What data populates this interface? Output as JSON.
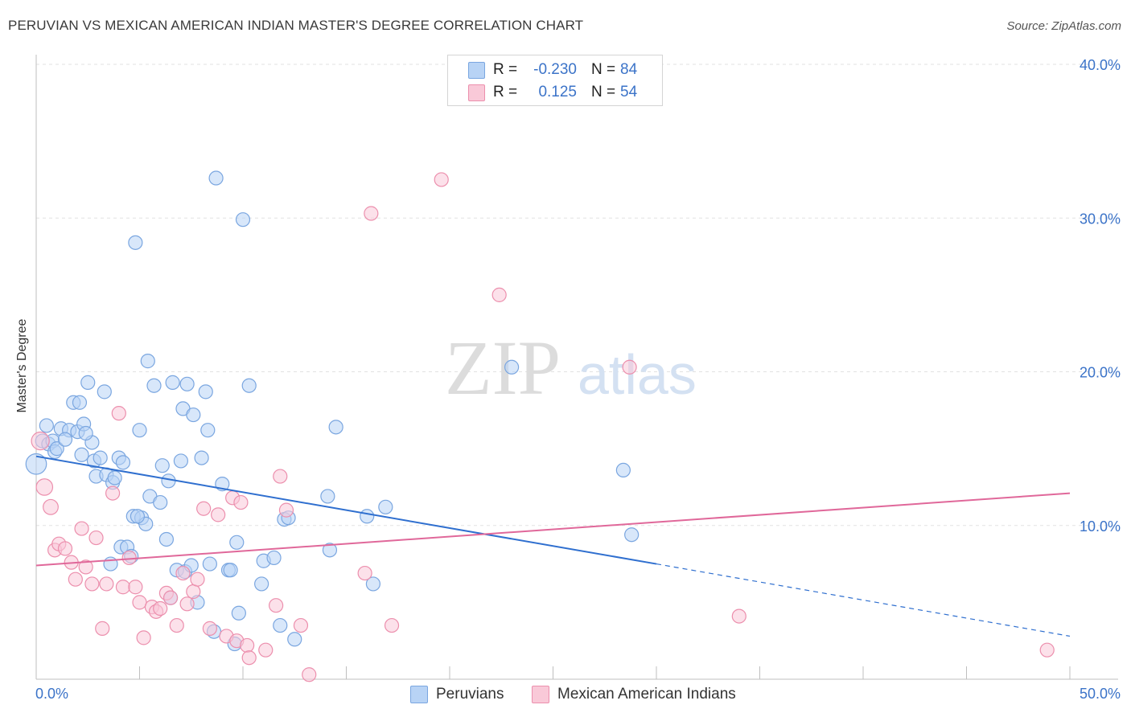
{
  "header": {
    "title": "PERUVIAN VS MEXICAN AMERICAN INDIAN MASTER'S DEGREE CORRELATION CHART",
    "source": "Source: ZipAtlas.com"
  },
  "watermark": {
    "zip": "ZIP",
    "atlas": "atlas"
  },
  "stats": {
    "r_label": "R =",
    "n_label": "N =",
    "rows": [
      {
        "series": "Peruvians",
        "r": "-0.230",
        "n": "84",
        "color": "#b8d3f5",
        "border": "#7aa6e0"
      },
      {
        "series": "Mexican American Indians",
        "r": "0.125",
        "n": "54",
        "color": "#f9c9d8",
        "border": "#ec8fad"
      }
    ]
  },
  "legend": {
    "items": [
      {
        "label": "Peruvians",
        "color": "#b8d3f5",
        "border": "#7aa6e0"
      },
      {
        "label": "Mexican American Indians",
        "color": "#f9c9d8",
        "border": "#ec8fad"
      }
    ]
  },
  "chart_data": {
    "type": "scatter",
    "title": "PERUVIAN VS MEXICAN AMERICAN INDIAN MASTER'S DEGREE CORRELATION CHART",
    "xlabel": "",
    "ylabel": "Master's Degree",
    "xlim": [
      0,
      50
    ],
    "ylim": [
      0,
      40
    ],
    "x_tick_labels": [
      "0.0%",
      "50.0%"
    ],
    "y_ticks": [
      10,
      20,
      30,
      40
    ],
    "y_tick_labels": [
      "10.0%",
      "20.0%",
      "30.0%",
      "40.0%"
    ],
    "grid": "horizontal dashed",
    "series": [
      {
        "name": "Peruvians",
        "color": "#7aa6e0",
        "fill": "#b8d3f5",
        "trend": {
          "x0": 0,
          "y0": 14.5,
          "x1": 30,
          "y1": 7.5,
          "dashed_to_x": 50,
          "dashed_to_y": 2.8,
          "color": "#2f6fcf"
        },
        "points": [
          [
            0.0,
            14.0,
            1.5
          ],
          [
            0.3,
            15.5,
            1
          ],
          [
            0.5,
            16.5,
            1
          ],
          [
            0.6,
            15.3,
            1
          ],
          [
            0.8,
            15.5,
            1
          ],
          [
            0.9,
            14.8,
            1
          ],
          [
            1.2,
            16.3,
            1
          ],
          [
            1.6,
            16.2,
            1
          ],
          [
            2.0,
            16.1,
            1
          ],
          [
            1.8,
            18.0,
            1
          ],
          [
            2.1,
            18.0,
            1
          ],
          [
            2.2,
            14.6,
            1
          ],
          [
            2.3,
            16.6,
            1
          ],
          [
            2.5,
            19.3,
            1
          ],
          [
            2.7,
            15.4,
            1
          ],
          [
            2.8,
            14.2,
            1
          ],
          [
            2.9,
            13.2,
            1
          ],
          [
            3.1,
            14.4,
            1
          ],
          [
            3.3,
            18.7,
            1
          ],
          [
            3.4,
            13.3,
            1
          ],
          [
            3.6,
            7.5,
            1
          ],
          [
            3.7,
            12.8,
            1
          ],
          [
            3.8,
            13.1,
            1
          ],
          [
            4.0,
            14.4,
            1
          ],
          [
            4.1,
            8.6,
            1
          ],
          [
            4.2,
            14.1,
            1
          ],
          [
            4.4,
            8.6,
            1
          ],
          [
            4.6,
            8.0,
            1
          ],
          [
            4.7,
            10.6,
            1
          ],
          [
            4.8,
            28.4,
            1
          ],
          [
            5.0,
            16.2,
            1
          ],
          [
            5.1,
            10.5,
            1
          ],
          [
            5.3,
            10.1,
            1
          ],
          [
            5.4,
            20.7,
            1
          ],
          [
            5.5,
            11.9,
            1
          ],
          [
            5.7,
            19.1,
            1
          ],
          [
            6.0,
            11.5,
            1
          ],
          [
            6.1,
            13.9,
            1
          ],
          [
            6.3,
            9.1,
            1
          ],
          [
            6.4,
            12.9,
            1
          ],
          [
            6.5,
            5.3,
            1
          ],
          [
            6.6,
            19.3,
            1
          ],
          [
            6.8,
            7.1,
            1
          ],
          [
            7.0,
            14.2,
            1
          ],
          [
            7.1,
            17.6,
            1
          ],
          [
            7.2,
            7.0,
            1
          ],
          [
            7.3,
            19.2,
            1
          ],
          [
            7.5,
            7.4,
            1
          ],
          [
            7.6,
            17.2,
            1
          ],
          [
            7.8,
            5.0,
            1
          ],
          [
            8.0,
            14.4,
            1
          ],
          [
            8.2,
            18.7,
            1
          ],
          [
            8.3,
            16.2,
            1
          ],
          [
            8.4,
            7.5,
            1
          ],
          [
            8.6,
            3.1,
            1
          ],
          [
            8.7,
            32.6,
            1
          ],
          [
            9.0,
            12.7,
            1
          ],
          [
            9.3,
            7.1,
            1
          ],
          [
            9.6,
            2.3,
            1
          ],
          [
            9.7,
            8.9,
            1
          ],
          [
            9.8,
            4.3,
            1
          ],
          [
            10.0,
            29.9,
            1
          ],
          [
            10.3,
            19.1,
            1
          ],
          [
            10.9,
            6.2,
            1
          ],
          [
            11.0,
            7.7,
            1
          ],
          [
            11.5,
            7.9,
            1
          ],
          [
            11.8,
            3.5,
            1
          ],
          [
            12.0,
            10.4,
            1
          ],
          [
            12.2,
            10.5,
            1
          ],
          [
            12.5,
            2.6,
            1
          ],
          [
            14.1,
            11.9,
            1
          ],
          [
            14.2,
            8.4,
            1
          ],
          [
            14.5,
            16.4,
            1
          ],
          [
            16.0,
            10.6,
            1
          ],
          [
            16.3,
            6.2,
            1
          ],
          [
            16.9,
            11.2,
            1
          ],
          [
            23.0,
            20.3,
            1
          ],
          [
            28.4,
            13.6,
            1
          ],
          [
            28.8,
            9.4,
            1
          ],
          [
            1.0,
            15.0,
            1
          ],
          [
            1.4,
            15.6,
            1
          ],
          [
            2.4,
            16.0,
            1
          ],
          [
            4.9,
            10.6,
            1
          ],
          [
            9.4,
            7.1,
            1
          ]
        ]
      },
      {
        "name": "Mexican American Indians",
        "color": "#ec8fad",
        "fill": "#f9c9d8",
        "trend": {
          "x0": 0,
          "y0": 7.4,
          "x1": 50,
          "y1": 12.1,
          "color": "#e0689a"
        },
        "points": [
          [
            0.2,
            15.5,
            1.3
          ],
          [
            0.4,
            12.5,
            1.2
          ],
          [
            0.7,
            11.2,
            1.1
          ],
          [
            0.9,
            8.4,
            1
          ],
          [
            1.1,
            8.8,
            1
          ],
          [
            1.4,
            8.5,
            1
          ],
          [
            1.7,
            7.6,
            1
          ],
          [
            1.9,
            6.5,
            1
          ],
          [
            2.2,
            9.8,
            1
          ],
          [
            2.4,
            7.3,
            1
          ],
          [
            2.7,
            6.2,
            1
          ],
          [
            2.9,
            9.2,
            1
          ],
          [
            3.2,
            3.3,
            1
          ],
          [
            3.4,
            6.2,
            1
          ],
          [
            3.7,
            12.1,
            1
          ],
          [
            4.0,
            17.3,
            1
          ],
          [
            4.2,
            6.0,
            1
          ],
          [
            4.5,
            7.9,
            1
          ],
          [
            4.8,
            6.0,
            1
          ],
          [
            5.0,
            5.0,
            1
          ],
          [
            5.2,
            2.7,
            1
          ],
          [
            5.6,
            4.7,
            1
          ],
          [
            5.8,
            4.4,
            1
          ],
          [
            6.0,
            4.6,
            1
          ],
          [
            6.3,
            5.6,
            1
          ],
          [
            6.5,
            5.3,
            1
          ],
          [
            6.8,
            3.5,
            1
          ],
          [
            7.1,
            6.9,
            1
          ],
          [
            7.3,
            4.9,
            1
          ],
          [
            7.6,
            5.7,
            1
          ],
          [
            7.8,
            6.5,
            1
          ],
          [
            8.1,
            11.1,
            1
          ],
          [
            8.4,
            3.3,
            1
          ],
          [
            8.8,
            10.7,
            1
          ],
          [
            9.2,
            2.8,
            1
          ],
          [
            9.5,
            11.8,
            1
          ],
          [
            9.7,
            2.5,
            1
          ],
          [
            9.9,
            11.5,
            1
          ],
          [
            10.2,
            2.2,
            1
          ],
          [
            10.3,
            1.4,
            1
          ],
          [
            11.1,
            1.9,
            1
          ],
          [
            11.6,
            4.8,
            1
          ],
          [
            11.8,
            13.2,
            1
          ],
          [
            12.1,
            11.0,
            1
          ],
          [
            12.8,
            3.5,
            1
          ],
          [
            13.2,
            0.3,
            1
          ],
          [
            15.9,
            6.9,
            1
          ],
          [
            16.2,
            30.3,
            1
          ],
          [
            17.2,
            3.5,
            1
          ],
          [
            19.6,
            32.5,
            1
          ],
          [
            22.4,
            25.0,
            1
          ],
          [
            28.7,
            20.3,
            1
          ],
          [
            34.0,
            4.1,
            1
          ],
          [
            48.9,
            1.9,
            1
          ]
        ]
      }
    ]
  }
}
